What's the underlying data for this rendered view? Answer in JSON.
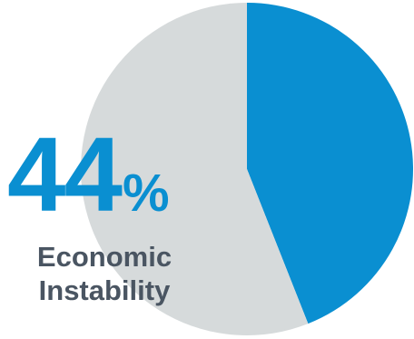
{
  "chart_data": {
    "type": "pie",
    "slices": [
      {
        "label": "Economic Instability",
        "value": 44,
        "color": "#0a8fd1"
      },
      {
        "label": "",
        "value": 56,
        "color": "#d6dadb"
      }
    ]
  },
  "callout": {
    "value": "44",
    "unit": "%",
    "label_line1": "Economic",
    "label_line2": "Instability"
  }
}
